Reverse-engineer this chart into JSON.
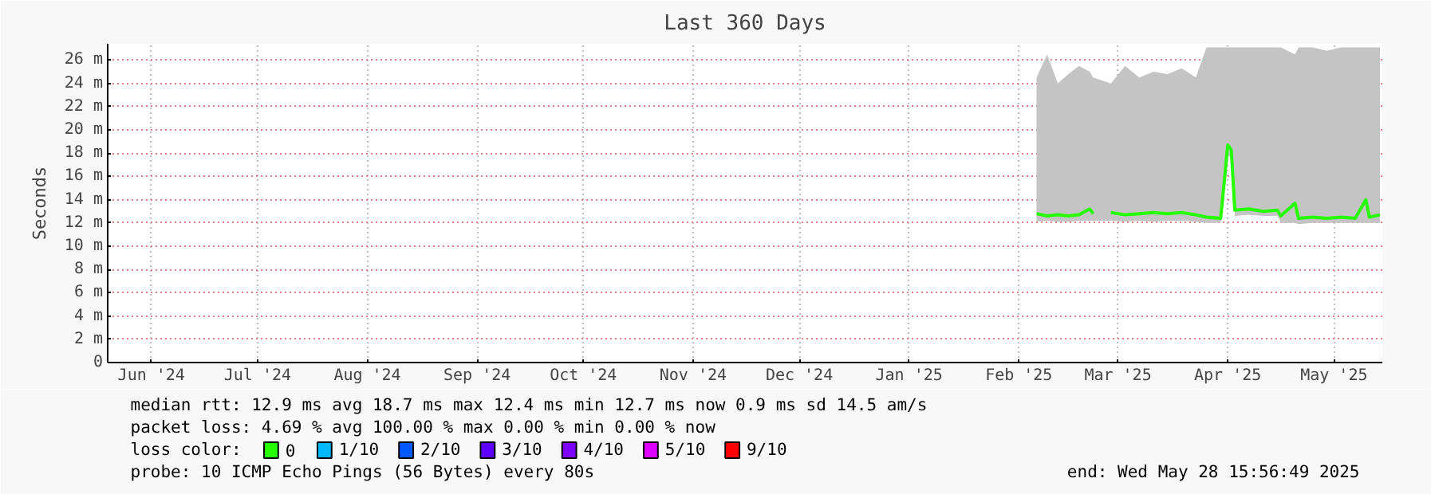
{
  "chart_data": {
    "type": "line",
    "title": "Last 360 Days",
    "ylabel": "Seconds",
    "legend_title": "loss color:",
    "x": [
      "2025-02-20",
      "2025-02-23",
      "2025-02-26",
      "2025-03-01",
      "2025-03-04",
      "2025-03-07",
      "2025-03-08",
      "2025-03-10",
      "2025-03-13",
      "2025-03-17",
      "2025-03-21",
      "2025-03-25",
      "2025-03-29",
      "2025-04-02",
      "2025-04-06",
      "2025-04-09",
      "2025-04-13",
      "2025-04-14",
      "2025-04-15",
      "2025-04-16",
      "2025-04-17",
      "2025-04-21",
      "2025-04-25",
      "2025-04-29",
      "2025-04-30",
      "2025-05-04",
      "2025-05-05",
      "2025-05-09",
      "2025-05-13",
      "2025-05-17",
      "2025-05-21",
      "2025-05-24",
      "2025-05-25",
      "2025-05-28"
    ],
    "series": [
      {
        "name": "0",
        "color": "#26ff00",
        "values": [
          12.8,
          12.6,
          12.7,
          12.6,
          12.7,
          13.2,
          12.8,
          null,
          12.9,
          12.7,
          12.8,
          12.9,
          12.8,
          12.9,
          12.7,
          12.5,
          12.4,
          15.5,
          18.7,
          18.3,
          13.1,
          13.2,
          13.0,
          13.1,
          12.6,
          13.7,
          12.4,
          12.5,
          12.4,
          12.5,
          12.4,
          14.0,
          12.5,
          12.7
        ],
        "lower": [
          12.1,
          12.2,
          12.1,
          12.1,
          12.2,
          12.2,
          12.2,
          null,
          12.2,
          12.1,
          12.2,
          12.1,
          12.2,
          12.2,
          12.1,
          12.0,
          12.0,
          14.8,
          17.8,
          17.6,
          12.6,
          12.7,
          12.6,
          12.6,
          12.0,
          12.0,
          11.9,
          12.0,
          12.0,
          12.0,
          12.0,
          12.0,
          12.0,
          12.0
        ],
        "upper": [
          24.5,
          26.5,
          24.0,
          24.8,
          25.5,
          25.0,
          24.5,
          null,
          24.0,
          25.5,
          24.5,
          25.0,
          24.8,
          25.3,
          24.5,
          27.1,
          27.1,
          27.1,
          27.1,
          27.1,
          27.1,
          27.1,
          27.1,
          27.1,
          27.1,
          26.5,
          27.1,
          27.1,
          26.8,
          27.1,
          27.1,
          27.1,
          27.1,
          27.1
        ]
      },
      {
        "name": "1/10",
        "color": "#00b8ff",
        "values": [
          null,
          null,
          null,
          null,
          null,
          null,
          null,
          null,
          null,
          null,
          null,
          null,
          null,
          null,
          null,
          null,
          null,
          null,
          null,
          null,
          null,
          null,
          null,
          null,
          null,
          null,
          null,
          null,
          null,
          null,
          null,
          null,
          null,
          null
        ]
      },
      {
        "name": "2/10",
        "color": "#0059ff",
        "values": [
          null,
          null,
          null,
          null,
          null,
          null,
          null,
          null,
          null,
          null,
          null,
          null,
          null,
          null,
          null,
          null,
          null,
          null,
          null,
          null,
          null,
          null,
          null,
          null,
          null,
          null,
          null,
          null,
          null,
          null,
          null,
          null,
          null,
          null
        ]
      },
      {
        "name": "3/10",
        "color": "#5e00ff",
        "values": [
          null,
          null,
          null,
          null,
          null,
          null,
          null,
          null,
          null,
          null,
          null,
          null,
          null,
          null,
          null,
          null,
          null,
          null,
          null,
          null,
          null,
          null,
          null,
          null,
          null,
          null,
          null,
          null,
          null,
          null,
          null,
          null,
          null,
          null
        ]
      },
      {
        "name": "4/10",
        "color": "#7e00ff",
        "values": [
          null,
          null,
          null,
          null,
          null,
          null,
          null,
          null,
          null,
          null,
          null,
          null,
          null,
          null,
          null,
          null,
          null,
          null,
          null,
          null,
          null,
          null,
          null,
          null,
          null,
          null,
          null,
          null,
          null,
          null,
          null,
          null,
          null,
          null
        ]
      },
      {
        "name": "5/10",
        "color": "#dd00ff",
        "values": [
          null,
          null,
          null,
          null,
          null,
          null,
          null,
          null,
          null,
          null,
          null,
          null,
          null,
          null,
          null,
          null,
          null,
          null,
          null,
          null,
          null,
          null,
          null,
          null,
          null,
          null,
          null,
          null,
          null,
          null,
          null,
          null,
          null,
          null
        ]
      },
      {
        "name": "9/10",
        "color": "#ff0000",
        "values": [
          null,
          null,
          null,
          null,
          null,
          null,
          null,
          null,
          null,
          null,
          null,
          null,
          null,
          null,
          null,
          null,
          null,
          null,
          null,
          null,
          null,
          null,
          null,
          null,
          null,
          null,
          null,
          null,
          null,
          null,
          null,
          null,
          null,
          null
        ]
      }
    ],
    "xlim": [
      "2024-06-02T16:00",
      "2025-05-28T15:56"
    ],
    "xticks": [
      {
        "value": "2024-06-15",
        "label": "Jun '24"
      },
      {
        "value": "2024-07-15",
        "label": "Jul '24"
      },
      {
        "value": "2024-08-15",
        "label": "Aug '24"
      },
      {
        "value": "2024-09-15",
        "label": "Sep '24"
      },
      {
        "value": "2024-10-15",
        "label": "Oct '24"
      },
      {
        "value": "2024-11-15",
        "label": "Nov '24"
      },
      {
        "value": "2024-12-15",
        "label": "Dec '24"
      },
      {
        "value": "2025-01-15",
        "label": "Jan '25"
      },
      {
        "value": "2025-02-15",
        "label": "Feb '25"
      },
      {
        "value": "2025-03-15",
        "label": "Mar '25"
      },
      {
        "value": "2025-04-15",
        "label": "Apr '25"
      },
      {
        "value": "2025-05-15",
        "label": "May '25"
      }
    ],
    "ylim": [
      0,
      27.4
    ],
    "yticks": [
      0,
      {
        "value": 2,
        "label": "2 m"
      },
      {
        "value": 4,
        "label": "4 m"
      },
      {
        "value": 6,
        "label": "6 m"
      },
      {
        "value": 8,
        "label": "8 m"
      },
      {
        "value": 10,
        "label": "10 m"
      },
      {
        "value": 12,
        "label": "12 m"
      },
      {
        "value": 14,
        "label": "14 m"
      },
      {
        "value": 16,
        "label": "16 m"
      },
      {
        "value": 18,
        "label": "18 m"
      },
      {
        "value": 20,
        "label": "20 m"
      },
      {
        "value": 22,
        "label": "22 m"
      },
      {
        "value": 24,
        "label": "24 m"
      },
      {
        "value": 26,
        "label": "26 m"
      }
    ],
    "grid": true,
    "legend": "bottom",
    "marker": "none",
    "line_style": "solid",
    "annotations": [
      "median rtt:  12.9 ms avg  18.7 ms max  12.4 ms min  12.7 ms now  0.9 ms sd  14.5   am/s",
      "packet loss: 4.69 % avg  100.00 % max  0.00 % min  0.00 % now",
      "probe:       10 ICMP Echo Pings (56 Bytes) every 80s",
      "end: Wed May 28 15:56:49 2025"
    ]
  }
}
